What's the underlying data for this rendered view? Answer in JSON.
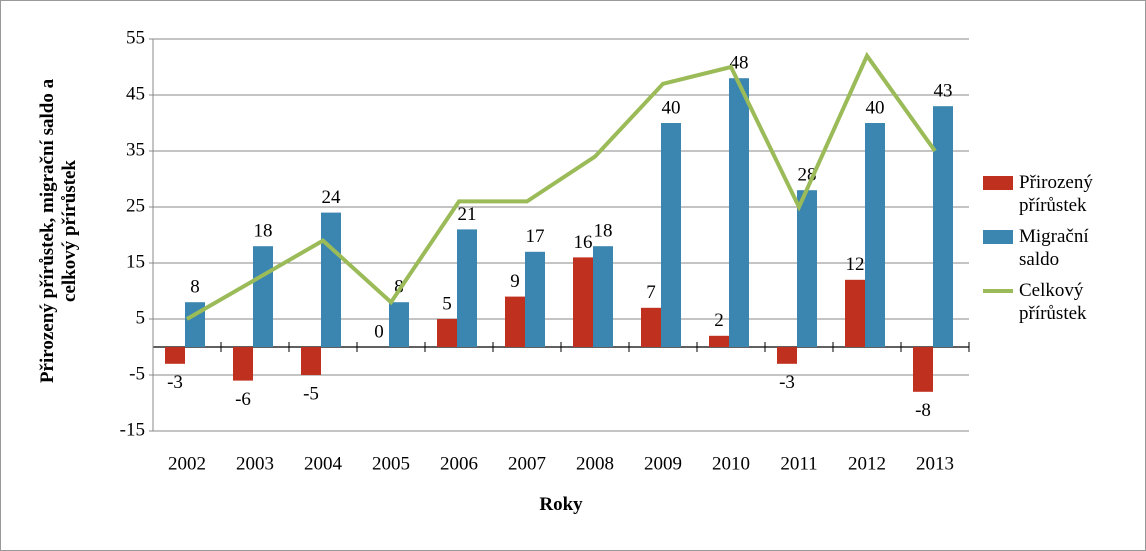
{
  "chart_data": {
    "type": "bar",
    "categories": [
      "2002",
      "2003",
      "2004",
      "2005",
      "2006",
      "2007",
      "2008",
      "2009",
      "2010",
      "2011",
      "2012",
      "2013"
    ],
    "series": [
      {
        "name": "Přirozený přírůstek",
        "color": "#c0301f",
        "values": [
          -3,
          -6,
          -5,
          0,
          5,
          9,
          16,
          7,
          2,
          -3,
          12,
          -8
        ]
      },
      {
        "name": "Migrační saldo",
        "color": "#3a86b0",
        "values": [
          8,
          18,
          24,
          8,
          21,
          17,
          18,
          40,
          48,
          28,
          40,
          43
        ]
      },
      {
        "name": "Celkový přírůstek",
        "color": "#9bbb59",
        "type": "line",
        "values": [
          5,
          12,
          19,
          8,
          26,
          26,
          34,
          47,
          50,
          25,
          52,
          35
        ]
      }
    ],
    "ylim": [
      -15,
      55
    ],
    "yticks": [
      -15,
      -5,
      5,
      15,
      25,
      35,
      45,
      55
    ],
    "grid": true,
    "legend": "right",
    "x_label": "Roky",
    "y_label": "Přirozený přírůstek, migrační saldo a celkový přírůstek"
  }
}
